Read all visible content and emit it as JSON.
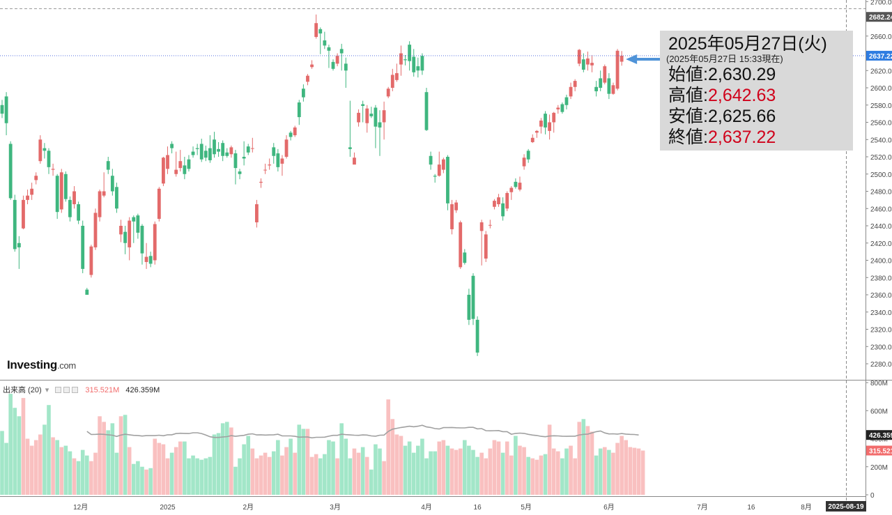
{
  "watermark": {
    "brand": "Investing",
    "suffix": ".com"
  },
  "info": {
    "date": "2025年05月27日(火)",
    "asof": "(2025年05月27日 15:33現在)",
    "rows": [
      {
        "label": "始値",
        "sep": ":",
        "value": "2,630.29",
        "color": "#111111"
      },
      {
        "label": "高値",
        "sep": ":",
        "value": "2,642.63",
        "color": "#d0021b"
      },
      {
        "label": "安値",
        "sep": ":",
        "value": "2,625.66",
        "color": "#111111"
      },
      {
        "label": "終値",
        "sep": ":",
        "value": "2,637.22",
        "color": "#d0021b"
      }
    ]
  },
  "volume_legend": {
    "title": "出来高 (20)",
    "value1": "315.521M",
    "value2": "426.359M"
  },
  "colors": {
    "up": "#e36a6a",
    "down": "#3fb67f",
    "vol_up": "#f9c0c0",
    "vol_down": "#a2e6c8",
    "ma": "#a0a0a0",
    "price_line": "#3b5bdb",
    "arrow": "#4f93d8"
  },
  "chart_data": [
    {
      "type": "candlestick",
      "title": "",
      "ylim": [
        2270,
        2700
      ],
      "y_ticks": [
        "2280.00",
        "2300.00",
        "2320.00",
        "2340.00",
        "2360.00",
        "2380.00",
        "2400.00",
        "2420.00",
        "2440.00",
        "2460.00",
        "2480.00",
        "2500.00",
        "2520.00",
        "2540.00",
        "2560.00",
        "2580.00",
        "2600.00",
        "2620.00",
        "2640.00",
        "2660.00",
        "2680.00",
        "2700.00"
      ],
      "tick_values": [
        2280,
        2300,
        2320,
        2340,
        2360,
        2380,
        2400,
        2420,
        2440,
        2460,
        2480,
        2500,
        2520,
        2540,
        2560,
        2580,
        2600,
        2620,
        2640,
        2660,
        2680,
        2700
      ],
      "x_labels": [
        {
          "label": "12月",
          "i": 18.5
        },
        {
          "label": "2025",
          "i": 39
        },
        {
          "label": "2月",
          "i": 58
        },
        {
          "label": "3月",
          "i": 78.5
        },
        {
          "label": "4月",
          "i": 100
        },
        {
          "label": "16",
          "i": 112
        },
        {
          "label": "5月",
          "i": 123.5
        },
        {
          "label": "6月",
          "i": 143
        },
        {
          "label": "7月",
          "i": 165
        },
        {
          "label": "16",
          "i": 176.5
        },
        {
          "label": "8月",
          "i": 189.5
        }
      ],
      "cursor_date": "2025-08-19",
      "last_price": "2637.22",
      "last_price_value": 2637.22,
      "high_marker": "2682.24",
      "high_marker_value": 2682.24,
      "candles": [
        [
          2580,
          2570,
          2586,
          2565
        ],
        [
          2590,
          2559,
          2595,
          2545
        ],
        [
          2535,
          2472,
          2538,
          2470
        ],
        [
          2470,
          2413,
          2476,
          2410
        ],
        [
          2420,
          2415,
          2428,
          2390
        ],
        [
          2437,
          2470,
          2475,
          2436
        ],
        [
          2470,
          2475,
          2482,
          2465
        ],
        [
          2476,
          2483,
          2490,
          2470
        ],
        [
          2493,
          2498,
          2502,
          2488
        ],
        [
          2515,
          2540,
          2545,
          2512
        ],
        [
          2530,
          2527,
          2536,
          2518
        ],
        [
          2527,
          2508,
          2530,
          2500
        ],
        [
          2505,
          2506,
          2512,
          2498
        ],
        [
          2498,
          2456,
          2500,
          2448
        ],
        [
          2459,
          2502,
          2506,
          2455
        ],
        [
          2500,
          2471,
          2503,
          2468
        ],
        [
          2470,
          2450,
          2474,
          2445
        ],
        [
          2465,
          2480,
          2486,
          2460
        ],
        [
          2465,
          2446,
          2468,
          2442
        ],
        [
          2440,
          2390,
          2446,
          2385
        ],
        [
          2366,
          2360,
          2368,
          2360
        ],
        [
          2383,
          2416,
          2418,
          2380
        ],
        [
          2415,
          2455,
          2460,
          2412
        ],
        [
          2450,
          2480,
          2482,
          2445
        ],
        [
          2475,
          2480,
          2502,
          2473
        ],
        [
          2515,
          2505,
          2520,
          2500
        ],
        [
          2498,
          2480,
          2506,
          2475
        ],
        [
          2485,
          2460,
          2490,
          2455
        ],
        [
          2430,
          2440,
          2447,
          2421
        ],
        [
          2433,
          2420,
          2440,
          2407
        ],
        [
          2415,
          2446,
          2450,
          2400
        ],
        [
          2450,
          2445,
          2452,
          2420
        ],
        [
          2452,
          2432,
          2454,
          2425
        ],
        [
          2440,
          2408,
          2442,
          2395
        ],
        [
          2398,
          2404,
          2420,
          2390
        ],
        [
          2405,
          2396,
          2410,
          2392
        ],
        [
          2400,
          2442,
          2445,
          2395
        ],
        [
          2448,
          2483,
          2485,
          2445
        ],
        [
          2489,
          2519,
          2520,
          2486
        ],
        [
          2506,
          2522,
          2532,
          2500
        ],
        [
          2535,
          2530,
          2538,
          2524
        ],
        [
          2500,
          2505,
          2526,
          2497
        ],
        [
          2507,
          2515,
          2528,
          2503
        ],
        [
          2510,
          2500,
          2520,
          2494
        ],
        [
          2517,
          2506,
          2522,
          2503
        ],
        [
          2526,
          2522,
          2532,
          2519
        ],
        [
          2530,
          2529,
          2535,
          2522
        ],
        [
          2535,
          2517,
          2541,
          2514
        ],
        [
          2527,
          2519,
          2533,
          2515
        ],
        [
          2530,
          2516,
          2545,
          2513
        ],
        [
          2540,
          2523,
          2549,
          2519
        ],
        [
          2529,
          2526,
          2537,
          2520
        ],
        [
          2536,
          2521,
          2539,
          2515
        ],
        [
          2525,
          2521,
          2530,
          2519
        ],
        [
          2523,
          2531,
          2533,
          2519
        ],
        [
          2524,
          2507,
          2528,
          2488
        ],
        [
          2503,
          2500,
          2506,
          2494
        ],
        [
          2520,
          2518,
          2538,
          2510
        ],
        [
          2532,
          2525,
          2535,
          2522
        ],
        [
          2530,
          2530,
          2542,
          2525
        ],
        [
          2444,
          2465,
          2470,
          2438
        ],
        [
          2490,
          2491,
          2495,
          2484
        ],
        [
          2505,
          2505,
          2512,
          2500
        ],
        [
          2510,
          2511,
          2518,
          2505
        ],
        [
          2531,
          2521,
          2536,
          2512
        ],
        [
          2524,
          2508,
          2529,
          2503
        ],
        [
          2512,
          2518,
          2522,
          2498
        ],
        [
          2520,
          2540,
          2545,
          2518
        ],
        [
          2548,
          2543,
          2550,
          2539
        ],
        [
          2545,
          2554,
          2556,
          2543
        ],
        [
          2583,
          2566,
          2586,
          2557
        ],
        [
          2599,
          2589,
          2604,
          2584
        ],
        [
          2607,
          2614,
          2616,
          2603
        ],
        [
          2624,
          2627,
          2632,
          2622
        ],
        [
          2659,
          2675,
          2685,
          2657
        ],
        [
          2668,
          2663,
          2670,
          2639
        ],
        [
          2655,
          2649,
          2665,
          2645
        ],
        [
          2647,
          2643,
          2650,
          2623
        ],
        [
          2630,
          2622,
          2633,
          2620
        ],
        [
          2628,
          2637,
          2640,
          2625
        ],
        [
          2645,
          2640,
          2651,
          2620
        ],
        [
          2628,
          2620,
          2635,
          2600
        ],
        [
          2531,
          2529,
          2585,
          2520
        ],
        [
          2511,
          2519,
          2525,
          2512
        ],
        [
          2560,
          2571,
          2575,
          2555
        ],
        [
          2581,
          2579,
          2585,
          2560
        ],
        [
          2559,
          2576,
          2580,
          2548
        ],
        [
          2570,
          2567,
          2578,
          2565
        ],
        [
          2577,
          2555,
          2580,
          2530
        ],
        [
          2560,
          2554,
          2574,
          2521
        ],
        [
          2560,
          2574,
          2584,
          2540
        ],
        [
          2590,
          2599,
          2601,
          2588
        ],
        [
          2600,
          2615,
          2622,
          2596
        ],
        [
          2609,
          2617,
          2628,
          2607
        ],
        [
          2627,
          2640,
          2649,
          2614
        ],
        [
          2633,
          2632,
          2638,
          2626
        ],
        [
          2650,
          2631,
          2654,
          2620
        ],
        [
          2636,
          2618,
          2645,
          2613
        ],
        [
          2625,
          2620,
          2635,
          2612
        ],
        [
          2637,
          2620,
          2640,
          2615
        ],
        [
          2595,
          2551,
          2600,
          2550
        ],
        [
          2521,
          2511,
          2526,
          2505
        ],
        [
          2498,
          2497,
          2500,
          2490
        ],
        [
          2498,
          2511,
          2526,
          2497
        ],
        [
          2505,
          2517,
          2519,
          2501
        ],
        [
          2520,
          2466,
          2522,
          2458
        ],
        [
          2436,
          2465,
          2470,
          2430
        ],
        [
          2458,
          2467,
          2470,
          2455
        ],
        [
          2392,
          2444,
          2446,
          2390
        ],
        [
          2409,
          2397,
          2413,
          2395
        ],
        [
          2360,
          2331,
          2367,
          2325
        ],
        [
          2382,
          2332,
          2385,
          2325
        ],
        [
          2331,
          2293,
          2335,
          2289
        ],
        [
          2434,
          2444,
          2447,
          2394
        ],
        [
          2402,
          2430,
          2434,
          2398
        ],
        [
          2441,
          2441,
          2447,
          2437
        ],
        [
          2462,
          2469,
          2471,
          2459
        ],
        [
          2465,
          2473,
          2477,
          2462
        ],
        [
          2466,
          2451,
          2473,
          2446
        ],
        [
          2460,
          2478,
          2480,
          2457
        ],
        [
          2479,
          2484,
          2486,
          2470
        ],
        [
          2491,
          2485,
          2495,
          2483
        ],
        [
          2482,
          2490,
          2497,
          2480
        ],
        [
          2509,
          2519,
          2523,
          2505
        ],
        [
          2527,
          2517,
          2529,
          2513
        ],
        [
          2537,
          2542,
          2546,
          2536
        ],
        [
          2548,
          2550,
          2551,
          2542
        ],
        [
          2555,
          2562,
          2565,
          2547
        ],
        [
          2570,
          2554,
          2573,
          2546
        ],
        [
          2550,
          2560,
          2569,
          2540
        ],
        [
          2560,
          2571,
          2572,
          2548
        ],
        [
          2575,
          2577,
          2580,
          2570
        ],
        [
          2581,
          2572,
          2583,
          2570
        ],
        [
          2589,
          2580,
          2592,
          2575
        ],
        [
          2590,
          2601,
          2606,
          2587
        ],
        [
          2601,
          2608,
          2610,
          2596
        ],
        [
          2628,
          2644,
          2645,
          2625
        ],
        [
          2633,
          2621,
          2640,
          2618
        ],
        [
          2627,
          2634,
          2642,
          2620
        ],
        [
          2626,
          2629,
          2638,
          2618
        ],
        [
          2601,
          2596,
          2608,
          2590
        ],
        [
          2611,
          2600,
          2620,
          2596
        ],
        [
          2606,
          2625,
          2627,
          2604
        ],
        [
          2611,
          2593,
          2617,
          2587
        ],
        [
          2593,
          2603,
          2606,
          2592
        ],
        [
          2599,
          2643,
          2645,
          2597
        ],
        [
          2630.29,
          2637.22,
          2642.63,
          2625.66
        ]
      ]
    },
    {
      "type": "bar",
      "title": "",
      "series_name": "出来高 (20)",
      "ylim": [
        0,
        800
      ],
      "y_ticks": [
        "0",
        "200M",
        "400M",
        "600M",
        "800M"
      ],
      "tick_values": [
        0,
        200,
        400,
        600,
        800
      ],
      "last_volume": "315.521M",
      "last_volume_value": 315.521,
      "last_ma": "426.359M",
      "last_ma_value": 426.359,
      "volumes": [
        455,
        370,
        720,
        620,
        560,
        690,
        400,
        350,
        390,
        430,
        500,
        640,
        410,
        390,
        340,
        350,
        310,
        260,
        240,
        320,
        280,
        240,
        300,
        560,
        520,
        460,
        510,
        300,
        560,
        570,
        340,
        220,
        240,
        200,
        180,
        190,
        400,
        370,
        360,
        260,
        300,
        340,
        380,
        380,
        260,
        280,
        260,
        250,
        260,
        270,
        430,
        440,
        510,
        520,
        480,
        200,
        260,
        360,
        420,
        330,
        260,
        280,
        300,
        270,
        310,
        390,
        280,
        340,
        400,
        300,
        500,
        470,
        470,
        270,
        290,
        260,
        290,
        390,
        380,
        260,
        510,
        400,
        260,
        330,
        300,
        340,
        270,
        180,
        360,
        330,
        240,
        680,
        540,
        430,
        420,
        350,
        380,
        300,
        350,
        400,
        260,
        310,
        310,
        380,
        390,
        350,
        330,
        320,
        330,
        390,
        350,
        320,
        270,
        300,
        260,
        330,
        390,
        380,
        300,
        380,
        280,
        420,
        350,
        340,
        270,
        260,
        250,
        280,
        290,
        500,
        330,
        310,
        260,
        330,
        350,
        260,
        520,
        540,
        490,
        450,
        280,
        330,
        340,
        320,
        300,
        370,
        420,
        390,
        340,
        335,
        330,
        315.521
      ],
      "ma": [
        null,
        null,
        null,
        null,
        null,
        null,
        null,
        null,
        null,
        null,
        null,
        null,
        null,
        null,
        null,
        null,
        null,
        null,
        null,
        null,
        452,
        430,
        431,
        433,
        431,
        428,
        425,
        416,
        426,
        432,
        428,
        424,
        423,
        419,
        422,
        422,
        422,
        425,
        421,
        428,
        428,
        437,
        439,
        438,
        437,
        442,
        442,
        437,
        426,
        414,
        409,
        409,
        412,
        415,
        422,
        417,
        421,
        424,
        432,
        435,
        427,
        428,
        426,
        427,
        428,
        432,
        420,
        420,
        420,
        417,
        411,
        412,
        412,
        406,
        410,
        410,
        411,
        418,
        424,
        424,
        432,
        429,
        427,
        425,
        424,
        427,
        426,
        420,
        418,
        425,
        426,
        452,
        468,
        474,
        480,
        484,
        489,
        485,
        489,
        496,
        484,
        480,
        472,
        469,
        479,
        479,
        480,
        478,
        477,
        477,
        481,
        481,
        470,
        472,
        457,
        456,
        457,
        458,
        450,
        450,
        432,
        438,
        440,
        438,
        431,
        426,
        423,
        417,
        414,
        419,
        421,
        420,
        418,
        417,
        418,
        418,
        427,
        431,
        433,
        441,
        450,
        455,
        441,
        434,
        435,
        433,
        437,
        433,
        431,
        430,
        426.359
      ]
    }
  ]
}
